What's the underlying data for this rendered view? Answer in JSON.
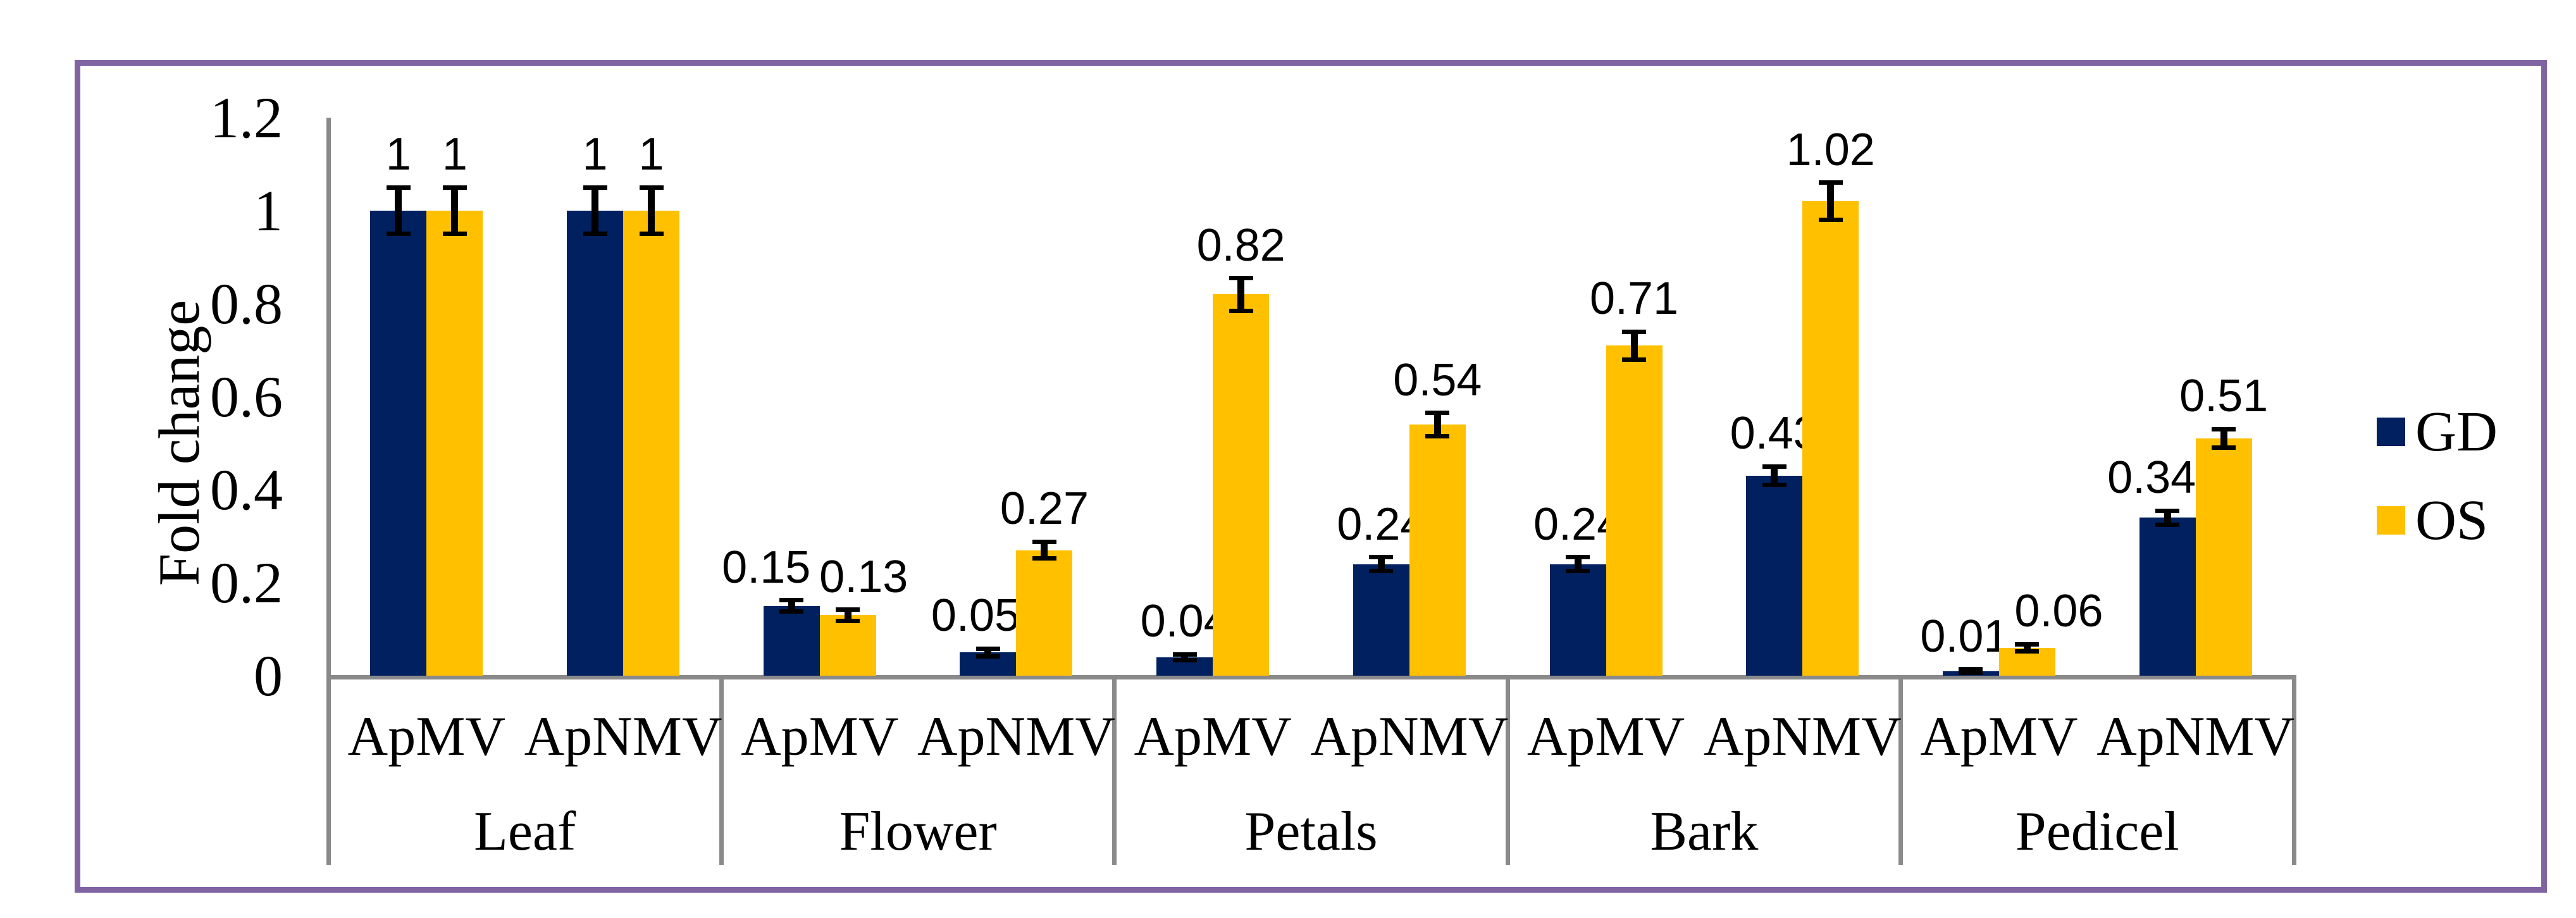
{
  "figure": {
    "background": "#FFFFFF",
    "border_color": "#8064A2",
    "axis_line_color": "#8A8A8A",
    "error_bar_color": "#000000",
    "text_color": "#000000"
  },
  "chart_data": {
    "type": "bar",
    "title": "",
    "xlabel": "",
    "ylabel": "Fold change",
    "ylim": [
      0,
      1.2
    ],
    "grid": false,
    "legend_position": "right",
    "ytick_values": [
      0,
      0.2,
      0.4,
      0.6,
      0.8,
      1,
      1.2
    ],
    "ytick_labels": [
      "0",
      "0.2",
      "0.4",
      "0.6",
      "0.8",
      "1",
      "1.2"
    ],
    "legend": [
      {
        "name": "GD",
        "color": "#002060"
      },
      {
        "name": "OS",
        "color": "#FFC000"
      }
    ],
    "groups": [
      {
        "tissue": "Leaf",
        "subgroups": [
          {
            "virus": "ApMV",
            "bars": [
              {
                "series": "GD",
                "value": 1,
                "label": "1",
                "err": 0.05,
                "label_dx": 0
              },
              {
                "series": "OS",
                "value": 1,
                "label": "1",
                "err": 0.05,
                "label_dx": 0
              }
            ]
          },
          {
            "virus": "ApNMV",
            "bars": [
              {
                "series": "GD",
                "value": 1,
                "label": "1",
                "err": 0.05,
                "label_dx": 0
              },
              {
                "series": "OS",
                "value": 1,
                "label": "1",
                "err": 0.05,
                "label_dx": 0
              }
            ]
          }
        ]
      },
      {
        "tissue": "Flower",
        "subgroups": [
          {
            "virus": "ApMV",
            "bars": [
              {
                "series": "GD",
                "value": 0.15,
                "label": "0.15",
                "err": 0.012,
                "label_dx": -40
              },
              {
                "series": "OS",
                "value": 0.13,
                "label": "0.13",
                "err": 0.012,
                "label_dx": 25
              }
            ]
          },
          {
            "virus": "ApNMV",
            "bars": [
              {
                "series": "GD",
                "value": 0.05,
                "label": "0.05",
                "err": 0.008,
                "label_dx": -20
              },
              {
                "series": "OS",
                "value": 0.27,
                "label": "0.27",
                "err": 0.018,
                "label_dx": 0
              }
            ]
          }
        ]
      },
      {
        "tissue": "Petals",
        "subgroups": [
          {
            "virus": "ApMV",
            "bars": [
              {
                "series": "GD",
                "value": 0.04,
                "label": "0.04",
                "err": 0.006,
                "label_dx": 0
              },
              {
                "series": "OS",
                "value": 0.82,
                "label": "0.82",
                "err": 0.035,
                "label_dx": 0
              }
            ]
          },
          {
            "virus": "ApNMV",
            "bars": [
              {
                "series": "GD",
                "value": 0.24,
                "label": "0.24",
                "err": 0.015,
                "label_dx": 0
              },
              {
                "series": "OS",
                "value": 0.54,
                "label": "0.54",
                "err": 0.025,
                "label_dx": 0
              }
            ]
          }
        ]
      },
      {
        "tissue": "Bark",
        "subgroups": [
          {
            "virus": "ApMV",
            "bars": [
              {
                "series": "GD",
                "value": 0.24,
                "label": "0.24",
                "err": 0.015,
                "label_dx": 0
              },
              {
                "series": "OS",
                "value": 0.71,
                "label": "0.71",
                "err": 0.03,
                "label_dx": 0
              }
            ]
          },
          {
            "virus": "ApNMV",
            "bars": [
              {
                "series": "GD",
                "value": 0.43,
                "label": "0.43",
                "err": 0.02,
                "label_dx": 0
              },
              {
                "series": "OS",
                "value": 1.02,
                "label": "1.02",
                "err": 0.04,
                "label_dx": 0
              }
            ]
          }
        ]
      },
      {
        "tissue": "Pedicel",
        "subgroups": [
          {
            "virus": "ApMV",
            "bars": [
              {
                "series": "GD",
                "value": 0.01,
                "label": "0.01",
                "err": 0.004,
                "label_dx": -10
              },
              {
                "series": "OS",
                "value": 0.06,
                "label": "0.06",
                "err": 0.008,
                "label_dx": 50
              }
            ]
          },
          {
            "virus": "ApNMV",
            "bars": [
              {
                "series": "GD",
                "value": 0.34,
                "label": "0.34",
                "err": 0.015,
                "label_dx": -25
              },
              {
                "series": "OS",
                "value": 0.51,
                "label": "0.51",
                "err": 0.02,
                "label_dx": 0
              }
            ]
          }
        ]
      }
    ]
  }
}
